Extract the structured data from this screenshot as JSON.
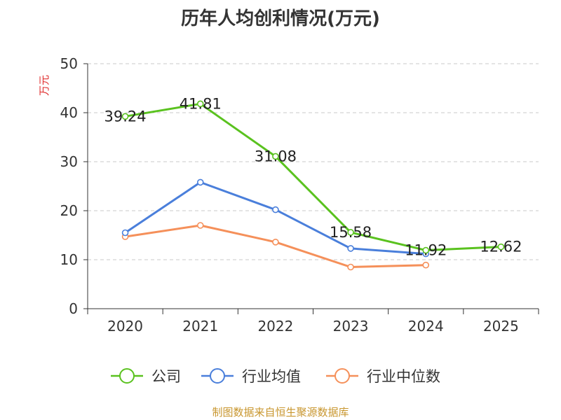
{
  "chart_data": {
    "type": "line",
    "title": "历年人均创利情况(万元)",
    "ylabel": "万元",
    "xlabel": "",
    "categories": [
      "2020",
      "2021",
      "2022",
      "2023",
      "2024",
      "2025"
    ],
    "ylim": [
      0,
      50
    ],
    "yticks": [
      0,
      10,
      20,
      30,
      40,
      50
    ],
    "grid": true,
    "legend_position": "bottom-center",
    "series": [
      {
        "name": "公司",
        "color": "#5ac21f",
        "values": [
          39.24,
          41.81,
          31.08,
          15.58,
          11.92,
          12.62
        ],
        "labels": [
          "39.24",
          "41.81",
          "31.08",
          "15.58",
          "11.92",
          "12.62"
        ]
      },
      {
        "name": "行业均值",
        "color": "#4a7fdb",
        "values": [
          15.5,
          25.8,
          20.2,
          12.3,
          11.2,
          null
        ]
      },
      {
        "name": "行业中位数",
        "color": "#f5905a",
        "values": [
          14.7,
          17.0,
          13.6,
          8.5,
          8.9,
          null
        ]
      }
    ]
  },
  "footer": {
    "source": "制图数据来自恒生聚源数据库"
  }
}
